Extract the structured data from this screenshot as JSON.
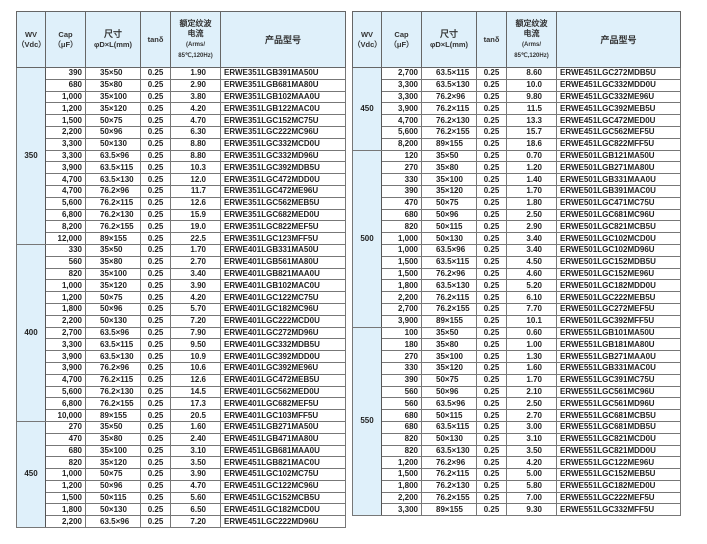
{
  "headers": {
    "wv": "WV",
    "wv_unit": "（Vdc）",
    "cap": "Cap",
    "cap_unit": "（μF）",
    "size": "尺寸",
    "size_unit": "φD×L(mm)",
    "tan": "tanδ",
    "ripple": "额定纹波电流",
    "ripple_unit1": "(Arms/",
    "ripple_unit2": "85℃,120Hz)",
    "model": "产品型号"
  },
  "colors": {
    "header_bg": "#dff0fa",
    "border": "#555555"
  },
  "tables": [
    {
      "groups": [
        {
          "wv": "350",
          "rows": [
            [
              "390",
              "35×50",
              "0.25",
              "1.90",
              "ERWE351LGB391MA50U"
            ],
            [
              "680",
              "35×80",
              "0.25",
              "2.90",
              "ERWE351LGB681MA80U"
            ],
            [
              "1,000",
              "35×100",
              "0.25",
              "3.80",
              "ERWE351LGB102MAA0U"
            ],
            [
              "1,200",
              "35×120",
              "0.25",
              "4.20",
              "ERWE351LGB122MAC0U"
            ],
            [
              "1,500",
              "50×75",
              "0.25",
              "4.70",
              "ERWE351LGC152MC75U"
            ],
            [
              "2,200",
              "50×96",
              "0.25",
              "6.30",
              "ERWE351LGC222MC96U"
            ],
            [
              "3,300",
              "50×130",
              "0.25",
              "8.80",
              "ERWE351LGC332MCD0U"
            ],
            [
              "3,300",
              "63.5×96",
              "0.25",
              "8.80",
              "ERWE351LGC332MD96U"
            ],
            [
              "3,900",
              "63.5×115",
              "0.25",
              "10.3",
              "ERWE351LGC392MDB5U"
            ],
            [
              "4,700",
              "63.5×130",
              "0.25",
              "12.0",
              "ERWE351LGC472MDD0U"
            ],
            [
              "4,700",
              "76.2×96",
              "0.25",
              "11.7",
              "ERWE351LGC472ME96U"
            ],
            [
              "5,600",
              "76.2×115",
              "0.25",
              "12.6",
              "ERWE351LGC562MEB5U"
            ],
            [
              "6,800",
              "76.2×130",
              "0.25",
              "15.9",
              "ERWE351LGC682MED0U"
            ],
            [
              "8,200",
              "76.2×155",
              "0.25",
              "19.0",
              "ERWE351LGC822MEF5U"
            ],
            [
              "12,000",
              "89×155",
              "0.25",
              "22.5",
              "ERWE351LGC123MFF5U"
            ]
          ]
        },
        {
          "wv": "400",
          "rows": [
            [
              "330",
              "35×50",
              "0.25",
              "1.70",
              "ERWE401LGB331MA50U"
            ],
            [
              "560",
              "35×80",
              "0.25",
              "2.70",
              "ERWE401LGB561MA80U"
            ],
            [
              "820",
              "35×100",
              "0.25",
              "3.40",
              "ERWE401LGB821MAA0U"
            ],
            [
              "1,000",
              "35×120",
              "0.25",
              "3.90",
              "ERWE401LGB102MAC0U"
            ],
            [
              "1,200",
              "50×75",
              "0.25",
              "4.20",
              "ERWE401LGC122MC75U"
            ],
            [
              "1,800",
              "50×96",
              "0.25",
              "5.70",
              "ERWE401LGC182MC96U"
            ],
            [
              "2,200",
              "50×130",
              "0.25",
              "7.20",
              "ERWE401LGC222MCD0U"
            ],
            [
              "2,700",
              "63.5×96",
              "0.25",
              "7.90",
              "ERWE401LGC272MD96U"
            ],
            [
              "3,300",
              "63.5×115",
              "0.25",
              "9.50",
              "ERWE401LGC332MDB5U"
            ],
            [
              "3,900",
              "63.5×130",
              "0.25",
              "10.9",
              "ERWE401LGC392MDD0U"
            ],
            [
              "3,900",
              "76.2×96",
              "0.25",
              "10.6",
              "ERWE401LGC392ME96U"
            ],
            [
              "4,700",
              "76.2×115",
              "0.25",
              "12.6",
              "ERWE401LGC472MEB5U"
            ],
            [
              "5,600",
              "76.2×130",
              "0.25",
              "14.5",
              "ERWE401LGC562MED0U"
            ],
            [
              "6,800",
              "76.2×155",
              "0.25",
              "17.3",
              "ERWE401LGC682MEF5U"
            ],
            [
              "10,000",
              "89×155",
              "0.25",
              "20.5",
              "ERWE401LGC103MFF5U"
            ]
          ]
        },
        {
          "wv": "450",
          "rows": [
            [
              "270",
              "35×50",
              "0.25",
              "1.60",
              "ERWE451LGB271MA50U"
            ],
            [
              "470",
              "35×80",
              "0.25",
              "2.40",
              "ERWE451LGB471MA80U"
            ],
            [
              "680",
              "35×100",
              "0.25",
              "3.10",
              "ERWE451LGB681MAA0U"
            ],
            [
              "820",
              "35×120",
              "0.25",
              "3.50",
              "ERWE451LGB821MAC0U"
            ],
            [
              "1,000",
              "50×75",
              "0.25",
              "3.90",
              "ERWE451LGC102MC75U"
            ],
            [
              "1,200",
              "50×96",
              "0.25",
              "4.70",
              "ERWE451LGC122MC96U"
            ],
            [
              "1,500",
              "50×115",
              "0.25",
              "5.60",
              "ERWE451LGC152MCB5U"
            ],
            [
              "1,800",
              "50×130",
              "0.25",
              "6.50",
              "ERWE451LGC182MCD0U"
            ],
            [
              "2,200",
              "63.5×96",
              "0.25",
              "7.20",
              "ERWE451LGC222MD96U"
            ]
          ]
        }
      ]
    },
    {
      "groups": [
        {
          "wv": "450",
          "rows": [
            [
              "2,700",
              "63.5×115",
              "0.25",
              "8.60",
              "ERWE451LGC272MDB5U"
            ],
            [
              "3,300",
              "63.5×130",
              "0.25",
              "10.0",
              "ERWE451LGC332MDD0U"
            ],
            [
              "3,300",
              "76.2×96",
              "0.25",
              "9.80",
              "ERWE451LGC332ME96U"
            ],
            [
              "3,900",
              "76.2×115",
              "0.25",
              "11.5",
              "ERWE451LGC392MEB5U"
            ],
            [
              "4,700",
              "76.2×130",
              "0.25",
              "13.3",
              "ERWE451LGC472MED0U"
            ],
            [
              "5,600",
              "76.2×155",
              "0.25",
              "15.7",
              "ERWE451LGC562MEF5U"
            ],
            [
              "8,200",
              "89×155",
              "0.25",
              "18.6",
              "ERWE451LGC822MFF5U"
            ]
          ]
        },
        {
          "wv": "500",
          "rows": [
            [
              "120",
              "35×50",
              "0.25",
              "0.70",
              "ERWE501LGB121MA50U"
            ],
            [
              "270",
              "35×80",
              "0.25",
              "1.20",
              "ERWE501LGB271MA80U"
            ],
            [
              "330",
              "35×100",
              "0.25",
              "1.40",
              "ERWE501LGB331MAA0U"
            ],
            [
              "390",
              "35×120",
              "0.25",
              "1.70",
              "ERWE501LGB391MAC0U"
            ],
            [
              "470",
              "50×75",
              "0.25",
              "1.80",
              "ERWE501LGC471MC75U"
            ],
            [
              "680",
              "50×96",
              "0.25",
              "2.50",
              "ERWE501LGC681MC96U"
            ],
            [
              "820",
              "50×115",
              "0.25",
              "2.90",
              "ERWE501LGC821MCB5U"
            ],
            [
              "1,000",
              "50×130",
              "0.25",
              "3.40",
              "ERWE501LGC102MCD0U"
            ],
            [
              "1,000",
              "63.5×96",
              "0.25",
              "3.40",
              "ERWE501LGC102MD96U"
            ],
            [
              "1,500",
              "63.5×115",
              "0.25",
              "4.50",
              "ERWE501LGC152MDB5U"
            ],
            [
              "1,500",
              "76.2×96",
              "0.25",
              "4.60",
              "ERWE501LGC152ME96U"
            ],
            [
              "1,800",
              "63.5×130",
              "0.25",
              "5.20",
              "ERWE501LGC182MDD0U"
            ],
            [
              "2,200",
              "76.2×115",
              "0.25",
              "6.10",
              "ERWE501LGC222MEB5U"
            ],
            [
              "2,700",
              "76.2×155",
              "0.25",
              "7.70",
              "ERWE501LGC272MEF5U"
            ],
            [
              "3,900",
              "89×155",
              "0.25",
              "10.1",
              "ERWE501LGC392MFF5U"
            ]
          ]
        },
        {
          "wv": "550",
          "rows": [
            [
              "100",
              "35×50",
              "0.25",
              "0.60",
              "ERWE551LGB101MA50U"
            ],
            [
              "180",
              "35×80",
              "0.25",
              "1.00",
              "ERWE551LGB181MA80U"
            ],
            [
              "270",
              "35×100",
              "0.25",
              "1.30",
              "ERWE551LGB271MAA0U"
            ],
            [
              "330",
              "35×120",
              "0.25",
              "1.60",
              "ERWE551LGB331MAC0U"
            ],
            [
              "390",
              "50×75",
              "0.25",
              "1.70",
              "ERWE551LGC391MC75U"
            ],
            [
              "560",
              "50×96",
              "0.25",
              "2.10",
              "ERWE551LGC561MC96U"
            ],
            [
              "560",
              "63.5×96",
              "0.25",
              "2.50",
              "ERWE551LGC561MD96U"
            ],
            [
              "680",
              "50×115",
              "0.25",
              "2.70",
              "ERWE551LGC681MCB5U"
            ],
            [
              "680",
              "63.5×115",
              "0.25",
              "3.00",
              "ERWE551LGC681MDB5U"
            ],
            [
              "820",
              "50×130",
              "0.25",
              "3.10",
              "ERWE551LGC821MCD0U"
            ],
            [
              "820",
              "63.5×130",
              "0.25",
              "3.50",
              "ERWE551LGC821MDD0U"
            ],
            [
              "1,200",
              "76.2×96",
              "0.25",
              "4.20",
              "ERWE551LGC122ME96U"
            ],
            [
              "1,500",
              "76.2×115",
              "0.25",
              "5.00",
              "ERWE551LGC152MEB5U"
            ],
            [
              "1,800",
              "76.2×130",
              "0.25",
              "5.80",
              "ERWE551LGC182MED0U"
            ],
            [
              "2,200",
              "76.2×155",
              "0.25",
              "7.00",
              "ERWE551LGC222MEF5U"
            ],
            [
              "3,300",
              "89×155",
              "0.25",
              "9.30",
              "ERWE551LGC332MFF5U"
            ]
          ]
        }
      ]
    }
  ]
}
